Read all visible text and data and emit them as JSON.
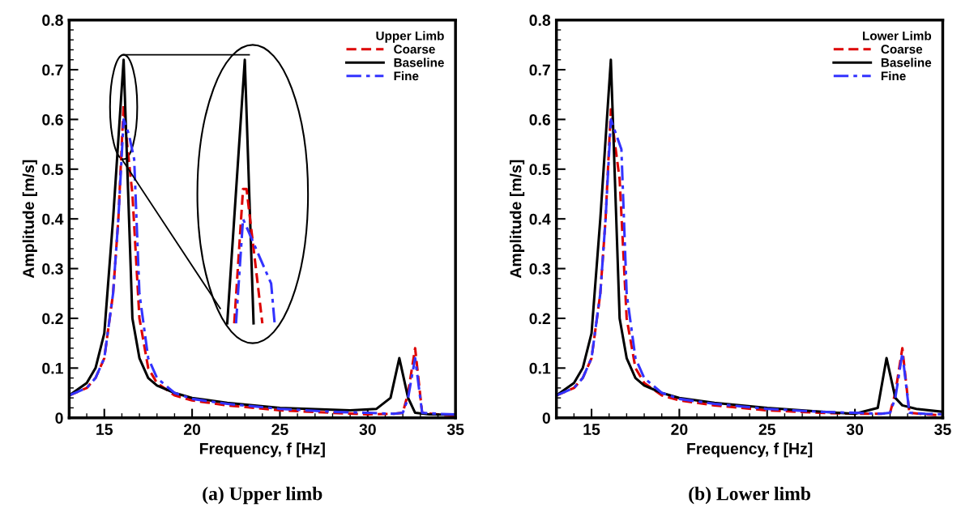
{
  "chart_data": [
    {
      "type": "line",
      "xlabel": "Frequency, f [Hz]",
      "ylabel": "Amplitude [m/s]",
      "legend_title": "Upper Limb",
      "legend": "top right",
      "xlim": [
        13,
        35
      ],
      "ylim": [
        0,
        0.8
      ],
      "xticks": [
        15,
        20,
        25,
        30,
        35
      ],
      "yticks": [
        0,
        0.1,
        0.2,
        0.3,
        0.4,
        0.5,
        0.6,
        0.7,
        0.8
      ],
      "grid": false,
      "annotations": [
        "(a) Upper limb"
      ],
      "series": [
        {
          "name": "Coarse",
          "color": "#dd0000",
          "line_style": "dashed",
          "x": [
            13,
            14,
            14.5,
            15,
            15.5,
            15.8,
            16.1,
            16.3,
            16.6,
            17,
            17.5,
            18,
            19,
            20,
            22,
            25,
            28,
            30,
            31.5,
            32,
            32.3,
            32.7,
            33.1,
            34,
            35
          ],
          "values": [
            0.045,
            0.06,
            0.08,
            0.12,
            0.25,
            0.4,
            0.63,
            0.55,
            0.45,
            0.2,
            0.1,
            0.07,
            0.045,
            0.035,
            0.025,
            0.015,
            0.01,
            0.007,
            0.008,
            0.01,
            0.05,
            0.14,
            0.01,
            0.007,
            0.005
          ]
        },
        {
          "name": "Baseline",
          "color": "#000000",
          "line_style": "solid",
          "x": [
            13,
            14,
            14.5,
            15,
            15.5,
            16.1,
            16.6,
            17,
            17.5,
            18,
            19,
            20,
            22,
            25,
            29,
            30.5,
            31.3,
            31.8,
            32.3,
            32.7,
            33.5,
            35
          ],
          "values": [
            0.045,
            0.07,
            0.1,
            0.17,
            0.4,
            0.72,
            0.2,
            0.12,
            0.08,
            0.065,
            0.05,
            0.04,
            0.03,
            0.02,
            0.015,
            0.018,
            0.04,
            0.12,
            0.04,
            0.01,
            0.007,
            0.006
          ]
        },
        {
          "name": "Fine",
          "color": "#3333ff",
          "line_style": "dashdot",
          "x": [
            13,
            14,
            14.5,
            15,
            15.5,
            15.8,
            16.1,
            16.4,
            16.7,
            17,
            17.5,
            18,
            19,
            20,
            22,
            25,
            28,
            30,
            31.5,
            32,
            32.3,
            32.7,
            33.1,
            34,
            35
          ],
          "values": [
            0.045,
            0.06,
            0.08,
            0.12,
            0.25,
            0.4,
            0.6,
            0.57,
            0.52,
            0.25,
            0.12,
            0.08,
            0.05,
            0.038,
            0.028,
            0.018,
            0.012,
            0.01,
            0.008,
            0.01,
            0.04,
            0.12,
            0.01,
            0.008,
            0.007
          ]
        },
        {
          "color": "#000000",
          "line_style": "solid",
          "x": [
            22.0,
            23.0,
            23.5
          ],
          "values": [
            0.19,
            0.72,
            0.19
          ]
        },
        {
          "color": "#dd0000",
          "line_style": "dashed",
          "x": [
            22.4,
            22.9,
            23.1,
            24.0
          ],
          "values": [
            0.19,
            0.46,
            0.46,
            0.19
          ]
        },
        {
          "color": "#3333ff",
          "line_style": "dashdot",
          "x": [
            22.5,
            22.9,
            24.5,
            24.7
          ],
          "values": [
            0.19,
            0.4,
            0.27,
            0.19
          ]
        }
      ]
    },
    {
      "type": "line",
      "xlabel": "Frequency, f [Hz]",
      "ylabel": "Amplitude [m/s]",
      "legend_title": "Lower Limb",
      "legend": "top right",
      "xlim": [
        13,
        35
      ],
      "ylim": [
        0,
        0.8
      ],
      "xticks": [
        15,
        20,
        25,
        30,
        35
      ],
      "yticks": [
        0,
        0.1,
        0.2,
        0.3,
        0.4,
        0.5,
        0.6,
        0.7,
        0.8
      ],
      "grid": false,
      "annotations": [
        "(b) Lower limb"
      ],
      "series": [
        {
          "name": "Coarse",
          "color": "#dd0000",
          "line_style": "dashed",
          "x": [
            13,
            14,
            14.5,
            15,
            15.5,
            15.8,
            16.1,
            16.3,
            16.6,
            17,
            17.5,
            18,
            19,
            20,
            22,
            25,
            28,
            30,
            31.5,
            32,
            32.3,
            32.7,
            33.1,
            34,
            35
          ],
          "values": [
            0.045,
            0.06,
            0.08,
            0.12,
            0.25,
            0.4,
            0.62,
            0.56,
            0.48,
            0.2,
            0.1,
            0.07,
            0.045,
            0.035,
            0.025,
            0.015,
            0.01,
            0.008,
            0.008,
            0.01,
            0.05,
            0.14,
            0.01,
            0.007,
            0.005
          ]
        },
        {
          "name": "Baseline",
          "color": "#000000",
          "line_style": "solid",
          "x": [
            13,
            14,
            14.5,
            15,
            15.5,
            16.1,
            16.6,
            17,
            17.5,
            18,
            19,
            20,
            22,
            25,
            29,
            30,
            31.3,
            31.8,
            32.3,
            32.7,
            33.5,
            35
          ],
          "values": [
            0.045,
            0.07,
            0.1,
            0.17,
            0.4,
            0.72,
            0.2,
            0.12,
            0.08,
            0.065,
            0.05,
            0.04,
            0.03,
            0.02,
            0.01,
            0.008,
            0.02,
            0.12,
            0.04,
            0.025,
            0.018,
            0.012
          ]
        },
        {
          "name": "Fine",
          "color": "#3333ff",
          "line_style": "dashdot",
          "x": [
            13,
            14,
            14.5,
            15,
            15.5,
            15.8,
            16.1,
            16.4,
            16.7,
            17,
            17.5,
            18,
            19,
            20,
            22,
            25,
            28,
            30,
            31.5,
            32,
            32.3,
            32.7,
            33.1,
            34,
            35
          ],
          "values": [
            0.045,
            0.06,
            0.08,
            0.12,
            0.25,
            0.4,
            0.6,
            0.57,
            0.54,
            0.25,
            0.12,
            0.08,
            0.05,
            0.038,
            0.028,
            0.018,
            0.012,
            0.01,
            0.008,
            0.01,
            0.04,
            0.13,
            0.01,
            0.008,
            0.007
          ]
        }
      ]
    }
  ]
}
